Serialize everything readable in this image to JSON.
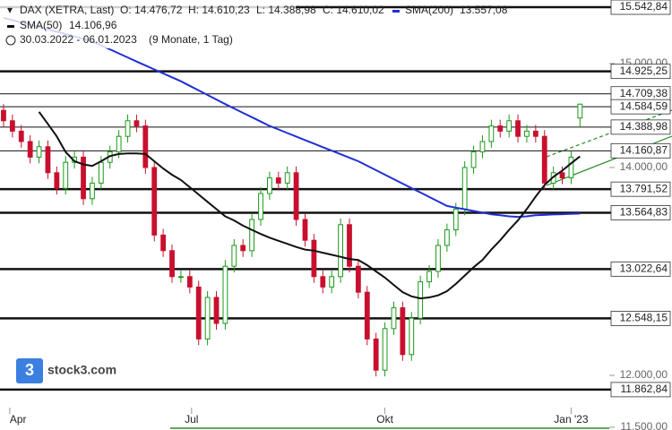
{
  "chart_data": {
    "type": "candlestick",
    "title": "DAX (XETRA, Last)",
    "ohlc_labels": [
      "O: 14.476,72",
      "H: 14.610,23",
      "L: 14.388,98",
      "C: 14.610,02"
    ],
    "range": "30.03.2022 - 06.01.2023",
    "range_note": "(9 Monate, 1 Tag)",
    "logo": "stock3.com",
    "logo_mark": "3",
    "up_color": "#1a9a1a",
    "down_color": "#c8102e",
    "candles": {
      "open": [
        14550,
        14450,
        14350,
        14250,
        14100,
        14200,
        13950,
        13800,
        14050,
        14100,
        13700,
        13850,
        14050,
        14150,
        14300,
        14450,
        14400,
        14000,
        13350,
        13200,
        12950,
        12950,
        12850,
        12350,
        12750,
        12500,
        13050,
        13250,
        13200,
        13500,
        13750,
        13900,
        13850,
        13950,
        13500,
        13300,
        12950,
        12850,
        12950,
        13450,
        13050,
        12800,
        12350,
        12050,
        12450,
        12650,
        12200,
        12550,
        12900,
        13000,
        13250,
        13400,
        13600,
        14000,
        14150,
        14250,
        14400,
        14350,
        14450,
        14300,
        14350,
        14300,
        13850,
        13950,
        13900,
        14476.72
      ],
      "high": [
        14610,
        14510,
        14410,
        14310,
        14260,
        14260,
        14010,
        14110,
        14160,
        14160,
        13910,
        14110,
        14210,
        14360,
        14510,
        14510,
        14460,
        14060,
        13410,
        13260,
        13010,
        13010,
        12910,
        12810,
        12810,
        13110,
        13310,
        13310,
        13560,
        13810,
        13960,
        13960,
        14010,
        14010,
        13560,
        13360,
        13010,
        13010,
        13510,
        13510,
        13110,
        12860,
        12410,
        12510,
        12710,
        12710,
        12610,
        12960,
        13060,
        13310,
        13460,
        13660,
        14060,
        14210,
        14310,
        14460,
        14460,
        14510,
        14510,
        14410,
        14410,
        14360,
        14010,
        14010,
        14160,
        14610.23
      ],
      "low": [
        14390,
        14290,
        14190,
        14040,
        14040,
        13890,
        13740,
        13740,
        13990,
        13640,
        13640,
        13790,
        13990,
        14090,
        14240,
        14340,
        13940,
        13290,
        13140,
        12890,
        12890,
        12790,
        12290,
        12290,
        12440,
        12440,
        12990,
        13140,
        13140,
        13440,
        13690,
        13790,
        13790,
        13440,
        13240,
        12890,
        12790,
        12790,
        12890,
        12990,
        12740,
        12290,
        11990,
        11990,
        12390,
        12140,
        12140,
        12490,
        12840,
        12940,
        13190,
        13340,
        13540,
        13940,
        14090,
        14190,
        14290,
        14290,
        14240,
        14240,
        14240,
        13790,
        13790,
        13840,
        13840,
        14388.98
      ],
      "close": [
        14450,
        14350,
        14250,
        14100,
        14200,
        13950,
        13800,
        14050,
        14100,
        13700,
        13850,
        14050,
        14150,
        14300,
        14450,
        14400,
        14000,
        13350,
        13200,
        12950,
        12950,
        12850,
        12350,
        12750,
        12500,
        13050,
        13250,
        13200,
        13500,
        13750,
        13900,
        13850,
        13950,
        13500,
        13300,
        12950,
        12850,
        12950,
        13450,
        13050,
        12800,
        12350,
        12050,
        12450,
        12650,
        12200,
        12550,
        12900,
        13000,
        13250,
        13400,
        13600,
        14000,
        14150,
        14250,
        14400,
        14350,
        14450,
        14300,
        14350,
        14300,
        13850,
        13950,
        13900,
        14100,
        14610.02
      ]
    },
    "indicators": [
      {
        "name": "SMA(200)",
        "value_label": "13.557,08",
        "color": "#1f2fd6",
        "values": [
          15440,
          15418,
          15396,
          15374,
          15352,
          15330,
          15307,
          15284,
          15261,
          15238,
          15215,
          15176,
          15137,
          15098,
          15059,
          15020,
          14982,
          14944,
          14906,
          14868,
          14830,
          14786,
          14742,
          14698,
          14654,
          14610,
          14568,
          14526,
          14484,
          14442,
          14400,
          14366,
          14332,
          14298,
          14264,
          14230,
          14196,
          14162,
          14128,
          14094,
          14060,
          14017,
          13974,
          13931,
          13888,
          13845,
          13802,
          13759,
          13716,
          13673,
          13630,
          13614,
          13598,
          13582,
          13566,
          13550,
          13540,
          13530,
          13525,
          13530,
          13540,
          13544,
          13548,
          13551,
          13554,
          13557.08
        ]
      },
      {
        "name": "SMA(50)",
        "value_label": "14.106,96",
        "color": "#111111",
        "values": [
          null,
          null,
          null,
          null,
          14535,
          14420,
          14300,
          14150,
          14060,
          14030,
          14015,
          14060,
          14110,
          14130,
          14135,
          14135,
          14130,
          14060,
          13990,
          13930,
          13880,
          13810,
          13740,
          13670,
          13600,
          13530,
          13490,
          13440,
          13400,
          13360,
          13325,
          13295,
          13265,
          13235,
          13210,
          13200,
          13180,
          13160,
          13140,
          13120,
          13110,
          13060,
          13000,
          12940,
          12870,
          12800,
          12760,
          12740,
          12750,
          12770,
          12810,
          12880,
          12960,
          13040,
          13110,
          13210,
          13300,
          13400,
          13490,
          13600,
          13720,
          13830,
          13910,
          13970,
          14040,
          14106.96
        ]
      }
    ],
    "levels": [
      {
        "value": 15542.84,
        "label": "15.542,84",
        "bold": true
      },
      {
        "value": 14925.25,
        "label": "14.925,25",
        "bold": true
      },
      {
        "value": 14709.38,
        "label": "14.709,38",
        "bold": false
      },
      {
        "value": 14584.59,
        "label": "14.584,59",
        "bold": false
      },
      {
        "value": 14388.98,
        "label": "14.388,98",
        "bold": false
      },
      {
        "value": 14160.87,
        "label": "14.160,87",
        "bold": false
      },
      {
        "value": 13791.52,
        "label": "13.791,52",
        "bold": true
      },
      {
        "value": 13564.83,
        "label": "13.564,83",
        "bold": true
      },
      {
        "value": 13022.64,
        "label": "13.022,64",
        "bold": true
      },
      {
        "value": 12548.15,
        "label": "12.548,15",
        "bold": true
      },
      {
        "value": 11862.84,
        "label": "11.862,84",
        "bold": true
      }
    ],
    "ylim": [
      11474,
      15612
    ],
    "yticks": [
      {
        "value": 15000,
        "label": "15.000,00"
      },
      {
        "value": 14000,
        "label": "14.000,00"
      },
      {
        "value": 12000,
        "label": "12.000,00"
      },
      {
        "value": 11500,
        "label": "11.500,00"
      }
    ],
    "xlim": [
      -0.4,
      68.3
    ],
    "xticks": [
      {
        "value": 0.7,
        "label": "Apr"
      },
      {
        "value": 21.2,
        "label": "Jul"
      },
      {
        "value": 43,
        "label": "Okt"
      },
      {
        "value": 64,
        "label": "Jan '23"
      }
    ]
  }
}
